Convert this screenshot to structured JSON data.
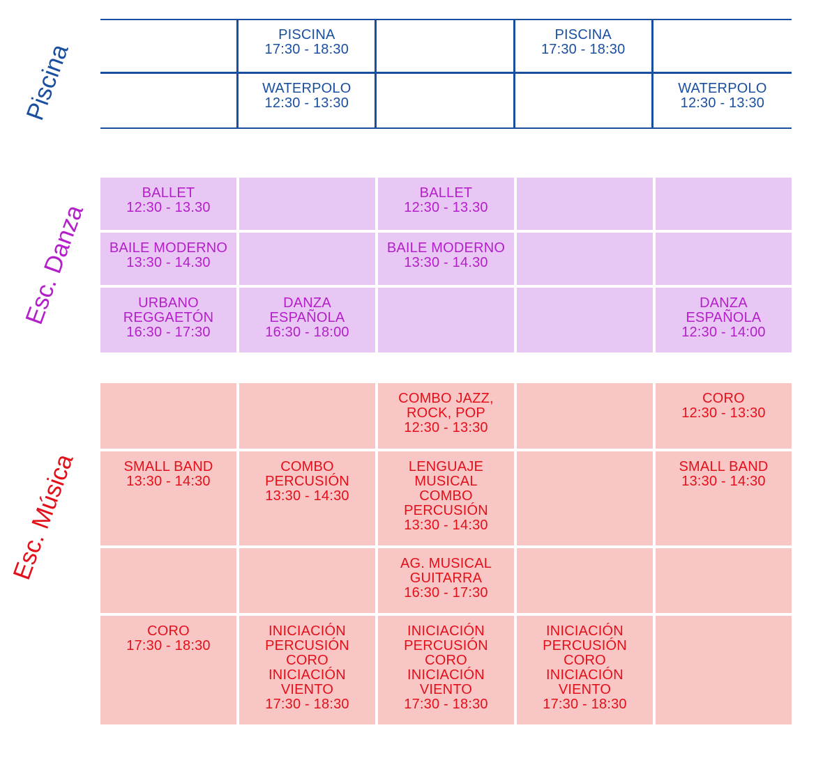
{
  "sections": {
    "piscina": {
      "label": "Piscina",
      "color": "#1a4fa0",
      "rows": [
        [
          [],
          [
            "PISCINA",
            "17:30 - 18:30"
          ],
          [],
          [
            "PISCINA",
            "17:30 - 18:30"
          ],
          []
        ],
        [
          [],
          [
            "WATERPOLO",
            "12:30 - 13:30"
          ],
          [],
          [],
          [
            "WATERPOLO",
            "12:30 - 13:30"
          ]
        ]
      ]
    },
    "danza": {
      "label": "Esc. Danza",
      "color": "#b31fc9",
      "background": "#e9c7f5",
      "rows": [
        [
          [
            "BALLET",
            "12:30 - 13.30"
          ],
          [],
          [
            "BALLET",
            "12:30 - 13.30"
          ],
          [],
          []
        ],
        [
          [
            "BAILE MODERNO",
            "13:30 - 14.30"
          ],
          [],
          [
            "BAILE MODERNO",
            "13:30 - 14.30"
          ],
          [],
          []
        ],
        [
          [
            "URBANO",
            "REGGAETÓN",
            "16:30 - 17:30"
          ],
          [
            "DANZA",
            "ESPAÑOLA",
            "16:30 - 18:00"
          ],
          [],
          [],
          [
            "DANZA",
            "ESPAÑOLA",
            "12:30 - 14:00"
          ]
        ]
      ]
    },
    "musica": {
      "label": "Esc. Música",
      "color": "#e3101a",
      "background": "#f9c6c6",
      "rows": [
        [
          [],
          [],
          [
            "COMBO JAZZ,",
            "ROCK, POP",
            "12:30 - 13:30"
          ],
          [],
          [
            "CORO",
            "12:30 - 13:30"
          ]
        ],
        [
          [
            "SMALL BAND",
            "13:30 - 14:30"
          ],
          [
            "COMBO",
            "PERCUSIÓN",
            "13:30 - 14:30"
          ],
          [
            "LENGUAJE",
            "MUSICAL",
            "COMBO",
            "PERCUSIÓN",
            "13:30 - 14:30"
          ],
          [],
          [
            "SMALL BAND",
            "13:30 - 14:30"
          ]
        ],
        [
          [],
          [],
          [
            "AG. MUSICAL",
            "GUITARRA",
            "16:30 - 17:30"
          ],
          [],
          []
        ],
        [
          [
            "CORO",
            "17:30 - 18:30"
          ],
          [
            "INICIACIÓN",
            "PERCUSIÓN",
            "CORO",
            "INICIACIÓN",
            "VIENTO",
            "17:30 - 18:30"
          ],
          [
            "INICIACIÓN",
            "PERCUSIÓN",
            "CORO",
            "INICIACIÓN",
            "VIENTO",
            "17:30 - 18:30"
          ],
          [
            "INICIACIÓN",
            "PERCUSIÓN",
            "CORO",
            "INICIACIÓN",
            "VIENTO",
            "17:30 - 18:30"
          ],
          []
        ]
      ]
    }
  }
}
